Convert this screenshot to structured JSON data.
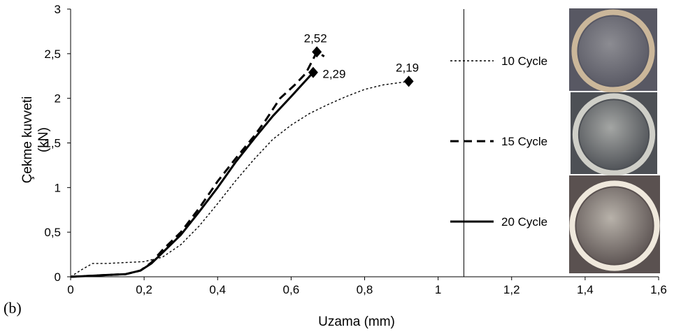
{
  "panel_label": "(b)",
  "chart_data": {
    "type": "line",
    "xlabel": "Uzama (mm)",
    "ylabel": "Çekme kuvveti (kN)",
    "ylabel_lines": [
      "Çekme kuvveti",
      "(kN)"
    ],
    "xlim": [
      0,
      1.6
    ],
    "ylim": [
      0,
      3
    ],
    "x_ticks": [
      0,
      0.2,
      0.4,
      0.6,
      0.8,
      1,
      1.2,
      1.4,
      1.6
    ],
    "x_tick_labels": [
      "0",
      "0,2",
      "0,4",
      "0,6",
      "0,8",
      "1",
      "1,2",
      "1,4",
      "1,6"
    ],
    "y_ticks": [
      0,
      0.5,
      1,
      1.5,
      2,
      2.5,
      3
    ],
    "y_tick_labels": [
      "0",
      "0,5",
      "1",
      "1,5",
      "2",
      "2,5",
      "3"
    ],
    "grid": false,
    "legend_position": "right",
    "reference_line_x": 1.07,
    "series": [
      {
        "name": "10 Cycle",
        "style": "dotted",
        "points": [
          [
            0,
            0
          ],
          [
            0.03,
            0.08
          ],
          [
            0.06,
            0.15
          ],
          [
            0.1,
            0.15
          ],
          [
            0.15,
            0.16
          ],
          [
            0.2,
            0.17
          ],
          [
            0.25,
            0.22
          ],
          [
            0.3,
            0.36
          ],
          [
            0.35,
            0.57
          ],
          [
            0.4,
            0.82
          ],
          [
            0.45,
            1.08
          ],
          [
            0.5,
            1.32
          ],
          [
            0.55,
            1.54
          ],
          [
            0.6,
            1.7
          ],
          [
            0.65,
            1.83
          ],
          [
            0.7,
            1.93
          ],
          [
            0.75,
            2.02
          ],
          [
            0.8,
            2.1
          ],
          [
            0.85,
            2.15
          ],
          [
            0.92,
            2.19
          ]
        ],
        "peak": [
          0.92,
          2.19
        ],
        "peak_label": "2,19"
      },
      {
        "name": "15 Cycle",
        "style": "dashed",
        "points": [
          [
            0,
            0
          ],
          [
            0.05,
            0.01
          ],
          [
            0.1,
            0.02
          ],
          [
            0.15,
            0.03
          ],
          [
            0.19,
            0.07
          ],
          [
            0.22,
            0.16
          ],
          [
            0.25,
            0.3
          ],
          [
            0.3,
            0.5
          ],
          [
            0.35,
            0.77
          ],
          [
            0.4,
            1.07
          ],
          [
            0.45,
            1.33
          ],
          [
            0.5,
            1.58
          ],
          [
            0.53,
            1.75
          ],
          [
            0.57,
            2.0
          ],
          [
            0.61,
            2.15
          ],
          [
            0.64,
            2.28
          ],
          [
            0.67,
            2.52
          ],
          [
            0.69,
            2.47
          ]
        ],
        "peak": [
          0.67,
          2.52
        ],
        "peak_label": "2,52"
      },
      {
        "name": "20 Cycle",
        "style": "solid",
        "points": [
          [
            0,
            0
          ],
          [
            0.05,
            0.01
          ],
          [
            0.1,
            0.02
          ],
          [
            0.15,
            0.03
          ],
          [
            0.19,
            0.07
          ],
          [
            0.22,
            0.15
          ],
          [
            0.25,
            0.27
          ],
          [
            0.3,
            0.47
          ],
          [
            0.35,
            0.73
          ],
          [
            0.4,
            1.0
          ],
          [
            0.45,
            1.29
          ],
          [
            0.5,
            1.55
          ],
          [
            0.55,
            1.8
          ],
          [
            0.6,
            2.02
          ],
          [
            0.66,
            2.29
          ]
        ],
        "peak": [
          0.66,
          2.29
        ],
        "peak_label": "2,29"
      }
    ]
  },
  "specimen_photos": [
    {
      "name": "10 Cycle",
      "base_color": "#585863",
      "ring_color": "#cbb79a",
      "disc_color": "#8c8c92"
    },
    {
      "name": "15 Cycle",
      "base_color": "#4d5055",
      "ring_color": "#cfcfc8",
      "disc_color": "#a4a6a4"
    },
    {
      "name": "20 Cycle",
      "base_color": "#5a5150",
      "ring_color": "#efe8dc",
      "disc_color": "#b8b2aa"
    }
  ]
}
